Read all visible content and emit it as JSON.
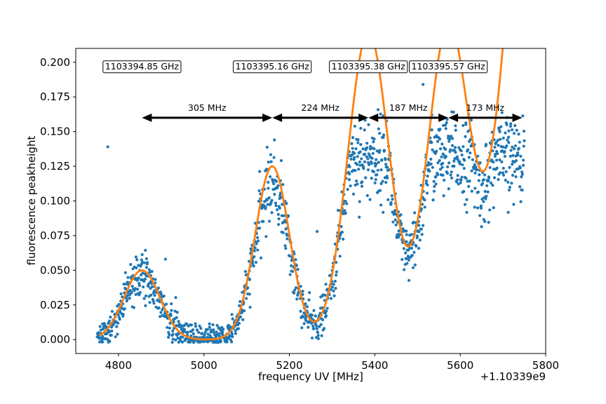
{
  "chart_data": {
    "type": "scatter",
    "xlabel": "frequency UV [MHz]",
    "ylabel": "fluorescence peakheight",
    "x_offset_label": "+1.10339e9",
    "xlim": [
      4700,
      5800
    ],
    "ylim": [
      -0.01,
      0.21
    ],
    "x_ticks": [
      4800,
      5000,
      5200,
      5400,
      5600,
      5800
    ],
    "y_ticks": [
      0.0,
      0.025,
      0.05,
      0.075,
      0.1,
      0.125,
      0.15,
      0.175,
      0.2
    ],
    "y_tick_labels": [
      "0.000",
      "0.025",
      "0.050",
      "0.075",
      "0.100",
      "0.125",
      "0.150",
      "0.175",
      "0.200"
    ],
    "grid": false,
    "colors": {
      "scatter": "#1f77b4",
      "fit": "#ff7f0e",
      "arrow": "#000000"
    },
    "series": [
      {
        "kind": "scatter",
        "x_range": [
          4750,
          5750
        ],
        "points_count": 1400,
        "noise": 0.012,
        "outliers": [
          {
            "x": 4775,
            "y": 0.139
          },
          {
            "x": 4910,
            "y": 0.058
          },
          {
            "x": 5265,
            "y": 0.078
          },
          {
            "x": 5513,
            "y": 0.184
          }
        ]
      },
      {
        "kind": "line",
        "x_range": [
          4755,
          5750
        ],
        "peaks": [
          {
            "center": 4855,
            "amp": 0.05,
            "width": 42
          },
          {
            "center": 5160,
            "amp": 0.125,
            "width": 40
          },
          {
            "center": 5385,
            "amp": 0.222,
            "width": 48
          },
          {
            "center": 5572,
            "amp": 0.225,
            "width": 48
          },
          {
            "center": 5800,
            "amp": 0.54,
            "width": 72
          }
        ]
      }
    ],
    "annotations": [
      {
        "text": "1103394.85 GHz",
        "x": 4855,
        "y": 0.197
      },
      {
        "text": "1103395.16 GHz",
        "x": 5160,
        "y": 0.197
      },
      {
        "text": "1103395.38 GHz",
        "x": 5385,
        "y": 0.197
      },
      {
        "text": "1103395.57 GHz",
        "x": 5572,
        "y": 0.197
      }
    ],
    "arrows": [
      {
        "label": "305 MHz",
        "x1": 4855,
        "x2": 5160,
        "y": 0.16
      },
      {
        "label": "224 MHz",
        "x1": 5160,
        "x2": 5385,
        "y": 0.16
      },
      {
        "label": "187 MHz",
        "x1": 5385,
        "x2": 5572,
        "y": 0.16
      },
      {
        "label": "173 MHz",
        "x1": 5572,
        "x2": 5745,
        "y": 0.16
      }
    ]
  }
}
